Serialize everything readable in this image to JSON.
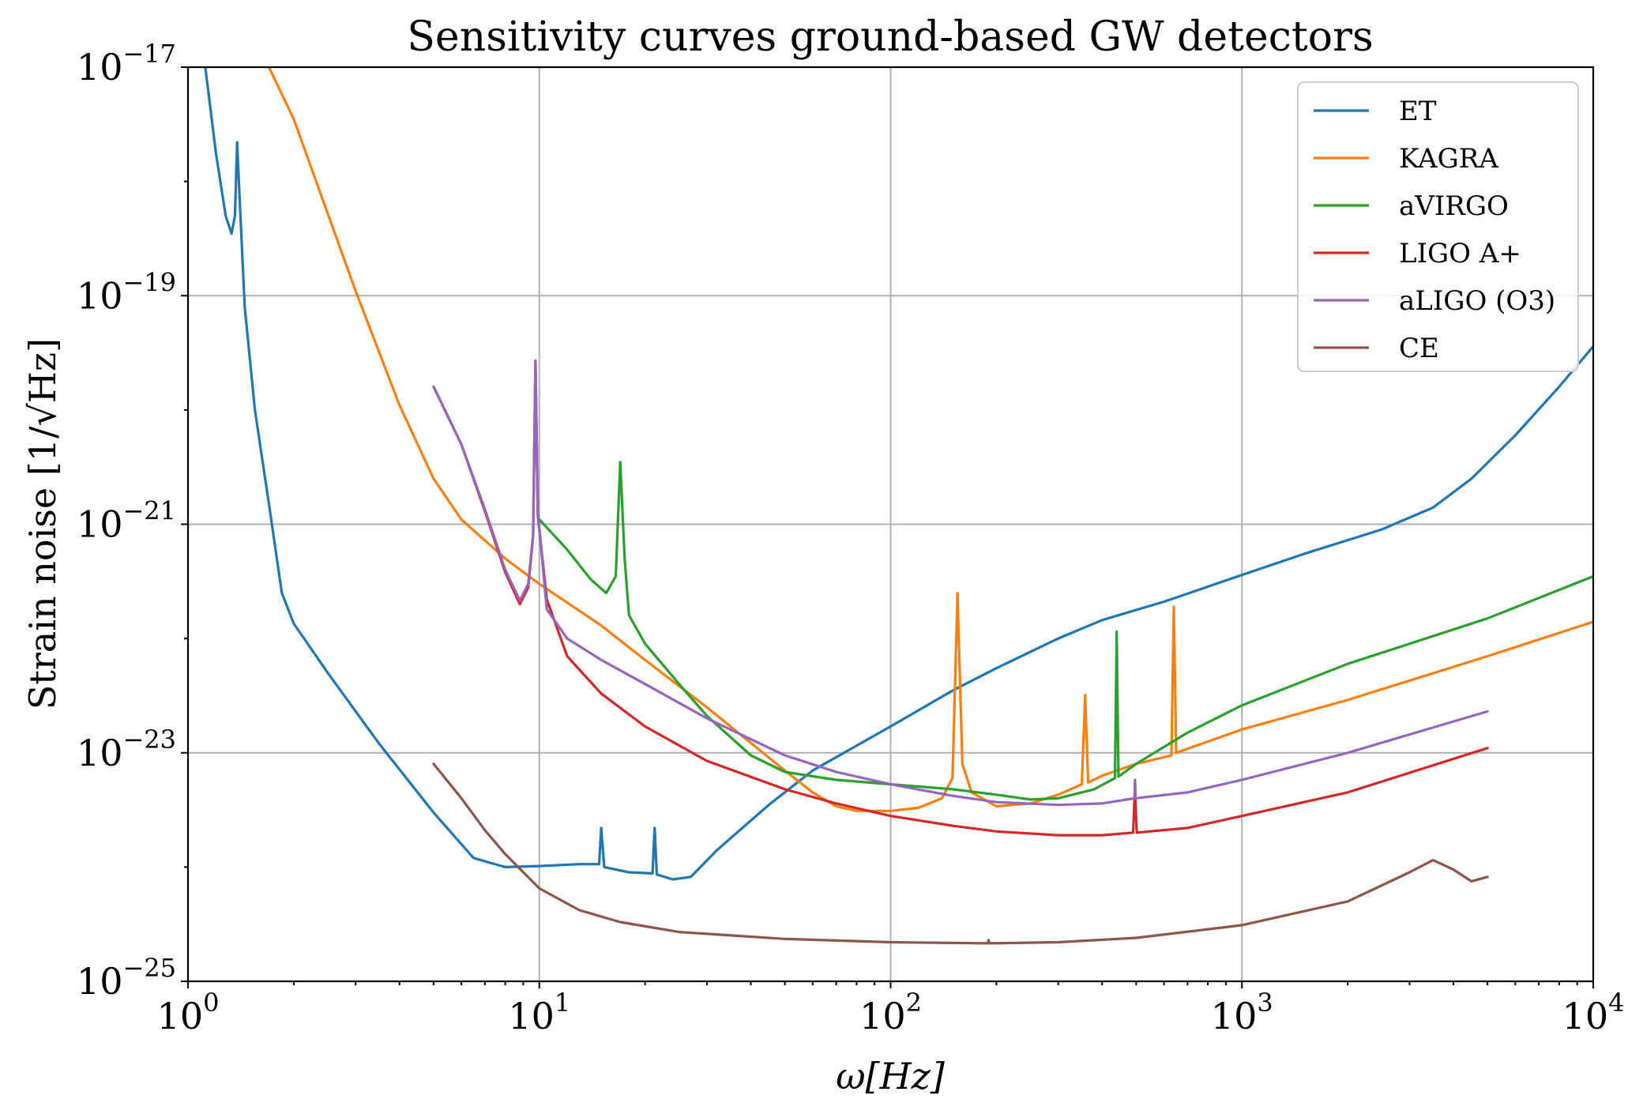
{
  "chart_data": {
    "type": "line",
    "title": "Sensitivity curves ground-based GW detectors",
    "xlabel": "ω[Hz]",
    "ylabel": "Strain noise [1/√Hz]",
    "xscale": "log",
    "yscale": "log",
    "xlim": [
      1,
      10000
    ],
    "ylim": [
      1e-25,
      1e-17
    ],
    "grid": true,
    "legend_position": "top-right",
    "x_ticks": [
      {
        "value": 1,
        "base": "10",
        "exp": "0"
      },
      {
        "value": 10,
        "base": "10",
        "exp": "1"
      },
      {
        "value": 100,
        "base": "10",
        "exp": "2"
      },
      {
        "value": 1000,
        "base": "10",
        "exp": "3"
      },
      {
        "value": 10000,
        "base": "10",
        "exp": "4"
      }
    ],
    "y_ticks": [
      {
        "value": 1e-17,
        "base": "10",
        "exp": "−17"
      },
      {
        "value": 1e-19,
        "base": "10",
        "exp": "−19"
      },
      {
        "value": 1e-21,
        "base": "10",
        "exp": "−21"
      },
      {
        "value": 1e-23,
        "base": "10",
        "exp": "−23"
      },
      {
        "value": 1e-25,
        "base": "10",
        "exp": "−25"
      }
    ],
    "series": [
      {
        "name": "ET",
        "color": "#1f77b4",
        "points": [
          [
            1.12,
            1e-17
          ],
          [
            1.2,
            1.8e-18
          ],
          [
            1.28,
            5e-19
          ],
          [
            1.33,
            3.5e-19
          ],
          [
            1.36,
            5e-19
          ],
          [
            1.38,
            2.2e-18
          ],
          [
            1.4,
            8e-19
          ],
          [
            1.45,
            8e-20
          ],
          [
            1.55,
            1e-20
          ],
          [
            1.7,
            1.5e-21
          ],
          [
            1.85,
            2.5e-22
          ],
          [
            2.0,
            1.35e-22
          ],
          [
            2.5,
            5e-23
          ],
          [
            3.5,
            1.2e-23
          ],
          [
            5.0,
            3e-24
          ],
          [
            6.5,
            1.2e-24
          ],
          [
            8.0,
            1e-24
          ],
          [
            10,
            1.02e-24
          ],
          [
            13,
            1.06e-24
          ],
          [
            14.8,
            1.06e-24
          ],
          [
            15.0,
            2.2e-24
          ],
          [
            15.3,
            1e-24
          ],
          [
            18,
            9e-25
          ],
          [
            21.0,
            8.8e-25
          ],
          [
            21.3,
            2.2e-24
          ],
          [
            21.6,
            8.6e-25
          ],
          [
            24,
            7.8e-25
          ],
          [
            27,
            8.2e-25
          ],
          [
            32,
            1.4e-24
          ],
          [
            45,
            3.5e-24
          ],
          [
            60,
            7e-24
          ],
          [
            100,
            1.7e-23
          ],
          [
            150,
            3.5e-23
          ],
          [
            200,
            5.5e-23
          ],
          [
            300,
            1e-22
          ],
          [
            400,
            1.45e-22
          ],
          [
            600,
            2.1e-22
          ],
          [
            1000,
            3.6e-22
          ],
          [
            1500,
            5.5e-22
          ],
          [
            2500,
            9e-22
          ],
          [
            3500,
            1.4e-21
          ],
          [
            4500,
            2.5e-21
          ],
          [
            6000,
            6e-21
          ],
          [
            8000,
            1.6e-20
          ],
          [
            10000,
            3.6e-20
          ]
        ]
      },
      {
        "name": "KAGRA",
        "color": "#ff7f0e",
        "points": [
          [
            1.7,
            1e-17
          ],
          [
            2.0,
            3.5e-18
          ],
          [
            3.0,
            1.1e-19
          ],
          [
            4.0,
            1.1e-20
          ],
          [
            5.0,
            2.5e-21
          ],
          [
            6.0,
            1.1e-21
          ],
          [
            8.0,
            5e-22
          ],
          [
            10,
            3e-22
          ],
          [
            15,
            1.3e-22
          ],
          [
            20,
            6.5e-23
          ],
          [
            30,
            2.5e-23
          ],
          [
            50,
            7e-24
          ],
          [
            60,
            4.5e-24
          ],
          [
            70,
            3.4e-24
          ],
          [
            80,
            3.1e-24
          ],
          [
            100,
            3.1e-24
          ],
          [
            120,
            3.3e-24
          ],
          [
            140,
            4e-24
          ],
          [
            150,
            6e-24
          ],
          [
            155,
            2.5e-22
          ],
          [
            160,
            8e-24
          ],
          [
            170,
            4.5e-24
          ],
          [
            200,
            3.4e-24
          ],
          [
            250,
            3.6e-24
          ],
          [
            300,
            4.3e-24
          ],
          [
            350,
            5.3e-24
          ],
          [
            358,
            3.2e-23
          ],
          [
            365,
            5.5e-24
          ],
          [
            400,
            6.3e-24
          ],
          [
            500,
            8e-24
          ],
          [
            630,
            9.5e-24
          ],
          [
            640,
            1.9e-22
          ],
          [
            650,
            1e-23
          ],
          [
            1000,
            1.6e-23
          ],
          [
            2000,
            2.9e-23
          ],
          [
            5000,
            7e-23
          ],
          [
            10000,
            1.4e-22
          ]
        ]
      },
      {
        "name": "aVIRGO",
        "color": "#2ca02c",
        "points": [
          [
            10,
            1.1e-21
          ],
          [
            12,
            6e-22
          ],
          [
            14,
            3.3e-22
          ],
          [
            15.5,
            2.5e-22
          ],
          [
            16.5,
            3.5e-22
          ],
          [
            17.0,
            3.5e-21
          ],
          [
            17.5,
            5e-22
          ],
          [
            18,
            1.6e-22
          ],
          [
            20,
            9e-23
          ],
          [
            25,
            4e-23
          ],
          [
            30,
            2.1e-23
          ],
          [
            40,
            9.5e-24
          ],
          [
            50,
            6.8e-24
          ],
          [
            70,
            5.8e-24
          ],
          [
            100,
            5.3e-24
          ],
          [
            150,
            4.8e-24
          ],
          [
            200,
            4.3e-24
          ],
          [
            250,
            3.9e-24
          ],
          [
            300,
            4e-24
          ],
          [
            380,
            4.8e-24
          ],
          [
            435,
            6e-24
          ],
          [
            440,
            1.15e-22
          ],
          [
            445,
            6.2e-24
          ],
          [
            500,
            8e-24
          ],
          [
            700,
            1.5e-23
          ],
          [
            1000,
            2.6e-23
          ],
          [
            2000,
            6e-23
          ],
          [
            5000,
            1.5e-22
          ],
          [
            10000,
            3.5e-22
          ]
        ]
      },
      {
        "name": "LIGO A+",
        "color": "#d62728",
        "points": [
          [
            5.0,
            1.6e-20
          ],
          [
            6.0,
            5e-21
          ],
          [
            7.0,
            1.3e-21
          ],
          [
            8.0,
            3.8e-22
          ],
          [
            8.8,
            2e-22
          ],
          [
            9.3,
            2.8e-22
          ],
          [
            9.6,
            8e-22
          ],
          [
            9.75,
            2.7e-20
          ],
          [
            9.9,
            1.2e-21
          ],
          [
            10.5,
            2.2e-22
          ],
          [
            12,
            7e-23
          ],
          [
            15,
            3.3e-23
          ],
          [
            20,
            1.7e-23
          ],
          [
            30,
            8.5e-24
          ],
          [
            50,
            4.8e-24
          ],
          [
            70,
            3.6e-24
          ],
          [
            100,
            2.8e-24
          ],
          [
            150,
            2.3e-24
          ],
          [
            200,
            2.05e-24
          ],
          [
            300,
            1.9e-24
          ],
          [
            400,
            1.9e-24
          ],
          [
            490,
            2e-24
          ],
          [
            496,
            4.8e-24
          ],
          [
            502,
            2e-24
          ],
          [
            700,
            2.2e-24
          ],
          [
            1000,
            2.8e-24
          ],
          [
            2000,
            4.5e-24
          ],
          [
            5000,
            1.1e-23
          ]
        ]
      },
      {
        "name": "aLIGO (O3)",
        "color": "#9467bd",
        "points": [
          [
            5.0,
            1.6e-20
          ],
          [
            6.0,
            5e-21
          ],
          [
            7.0,
            1.35e-21
          ],
          [
            8.0,
            4e-22
          ],
          [
            8.8,
            2.15e-22
          ],
          [
            9.3,
            3e-22
          ],
          [
            9.6,
            8e-22
          ],
          [
            9.75,
            2.7e-20
          ],
          [
            9.9,
            1.3e-21
          ],
          [
            10.5,
            1.8e-22
          ],
          [
            12,
            1e-22
          ],
          [
            15,
            6.5e-23
          ],
          [
            20,
            4e-23
          ],
          [
            30,
            2e-23
          ],
          [
            50,
            9.5e-24
          ],
          [
            70,
            6.8e-24
          ],
          [
            100,
            5.3e-24
          ],
          [
            150,
            4.2e-24
          ],
          [
            200,
            3.7e-24
          ],
          [
            300,
            3.5e-24
          ],
          [
            400,
            3.6e-24
          ],
          [
            495,
            4e-24
          ],
          [
            496,
            5.8e-24
          ],
          [
            498,
            4e-24
          ],
          [
            700,
            4.5e-24
          ],
          [
            1000,
            5.8e-24
          ],
          [
            2000,
            1e-23
          ],
          [
            5000,
            2.3e-23
          ]
        ]
      },
      {
        "name": "CE",
        "color": "#8c564b",
        "points": [
          [
            5.0,
            8e-24
          ],
          [
            6.0,
            4e-24
          ],
          [
            7.0,
            2.1e-24
          ],
          [
            8.0,
            1.3e-24
          ],
          [
            10,
            6.5e-25
          ],
          [
            13,
            4.2e-25
          ],
          [
            17,
            3.3e-25
          ],
          [
            25,
            2.7e-25
          ],
          [
            50,
            2.35e-25
          ],
          [
            100,
            2.2e-25
          ],
          [
            189,
            2.15e-25
          ],
          [
            190,
            2.3e-25
          ],
          [
            191,
            2.15e-25
          ],
          [
            300,
            2.2e-25
          ],
          [
            500,
            2.4e-25
          ],
          [
            1000,
            3.1e-25
          ],
          [
            2000,
            5e-25
          ],
          [
            3000,
            9e-25
          ],
          [
            3500,
            1.15e-24
          ],
          [
            4000,
            9.5e-25
          ],
          [
            4500,
            7.5e-25
          ],
          [
            5000,
            8.2e-25
          ]
        ]
      }
    ]
  }
}
